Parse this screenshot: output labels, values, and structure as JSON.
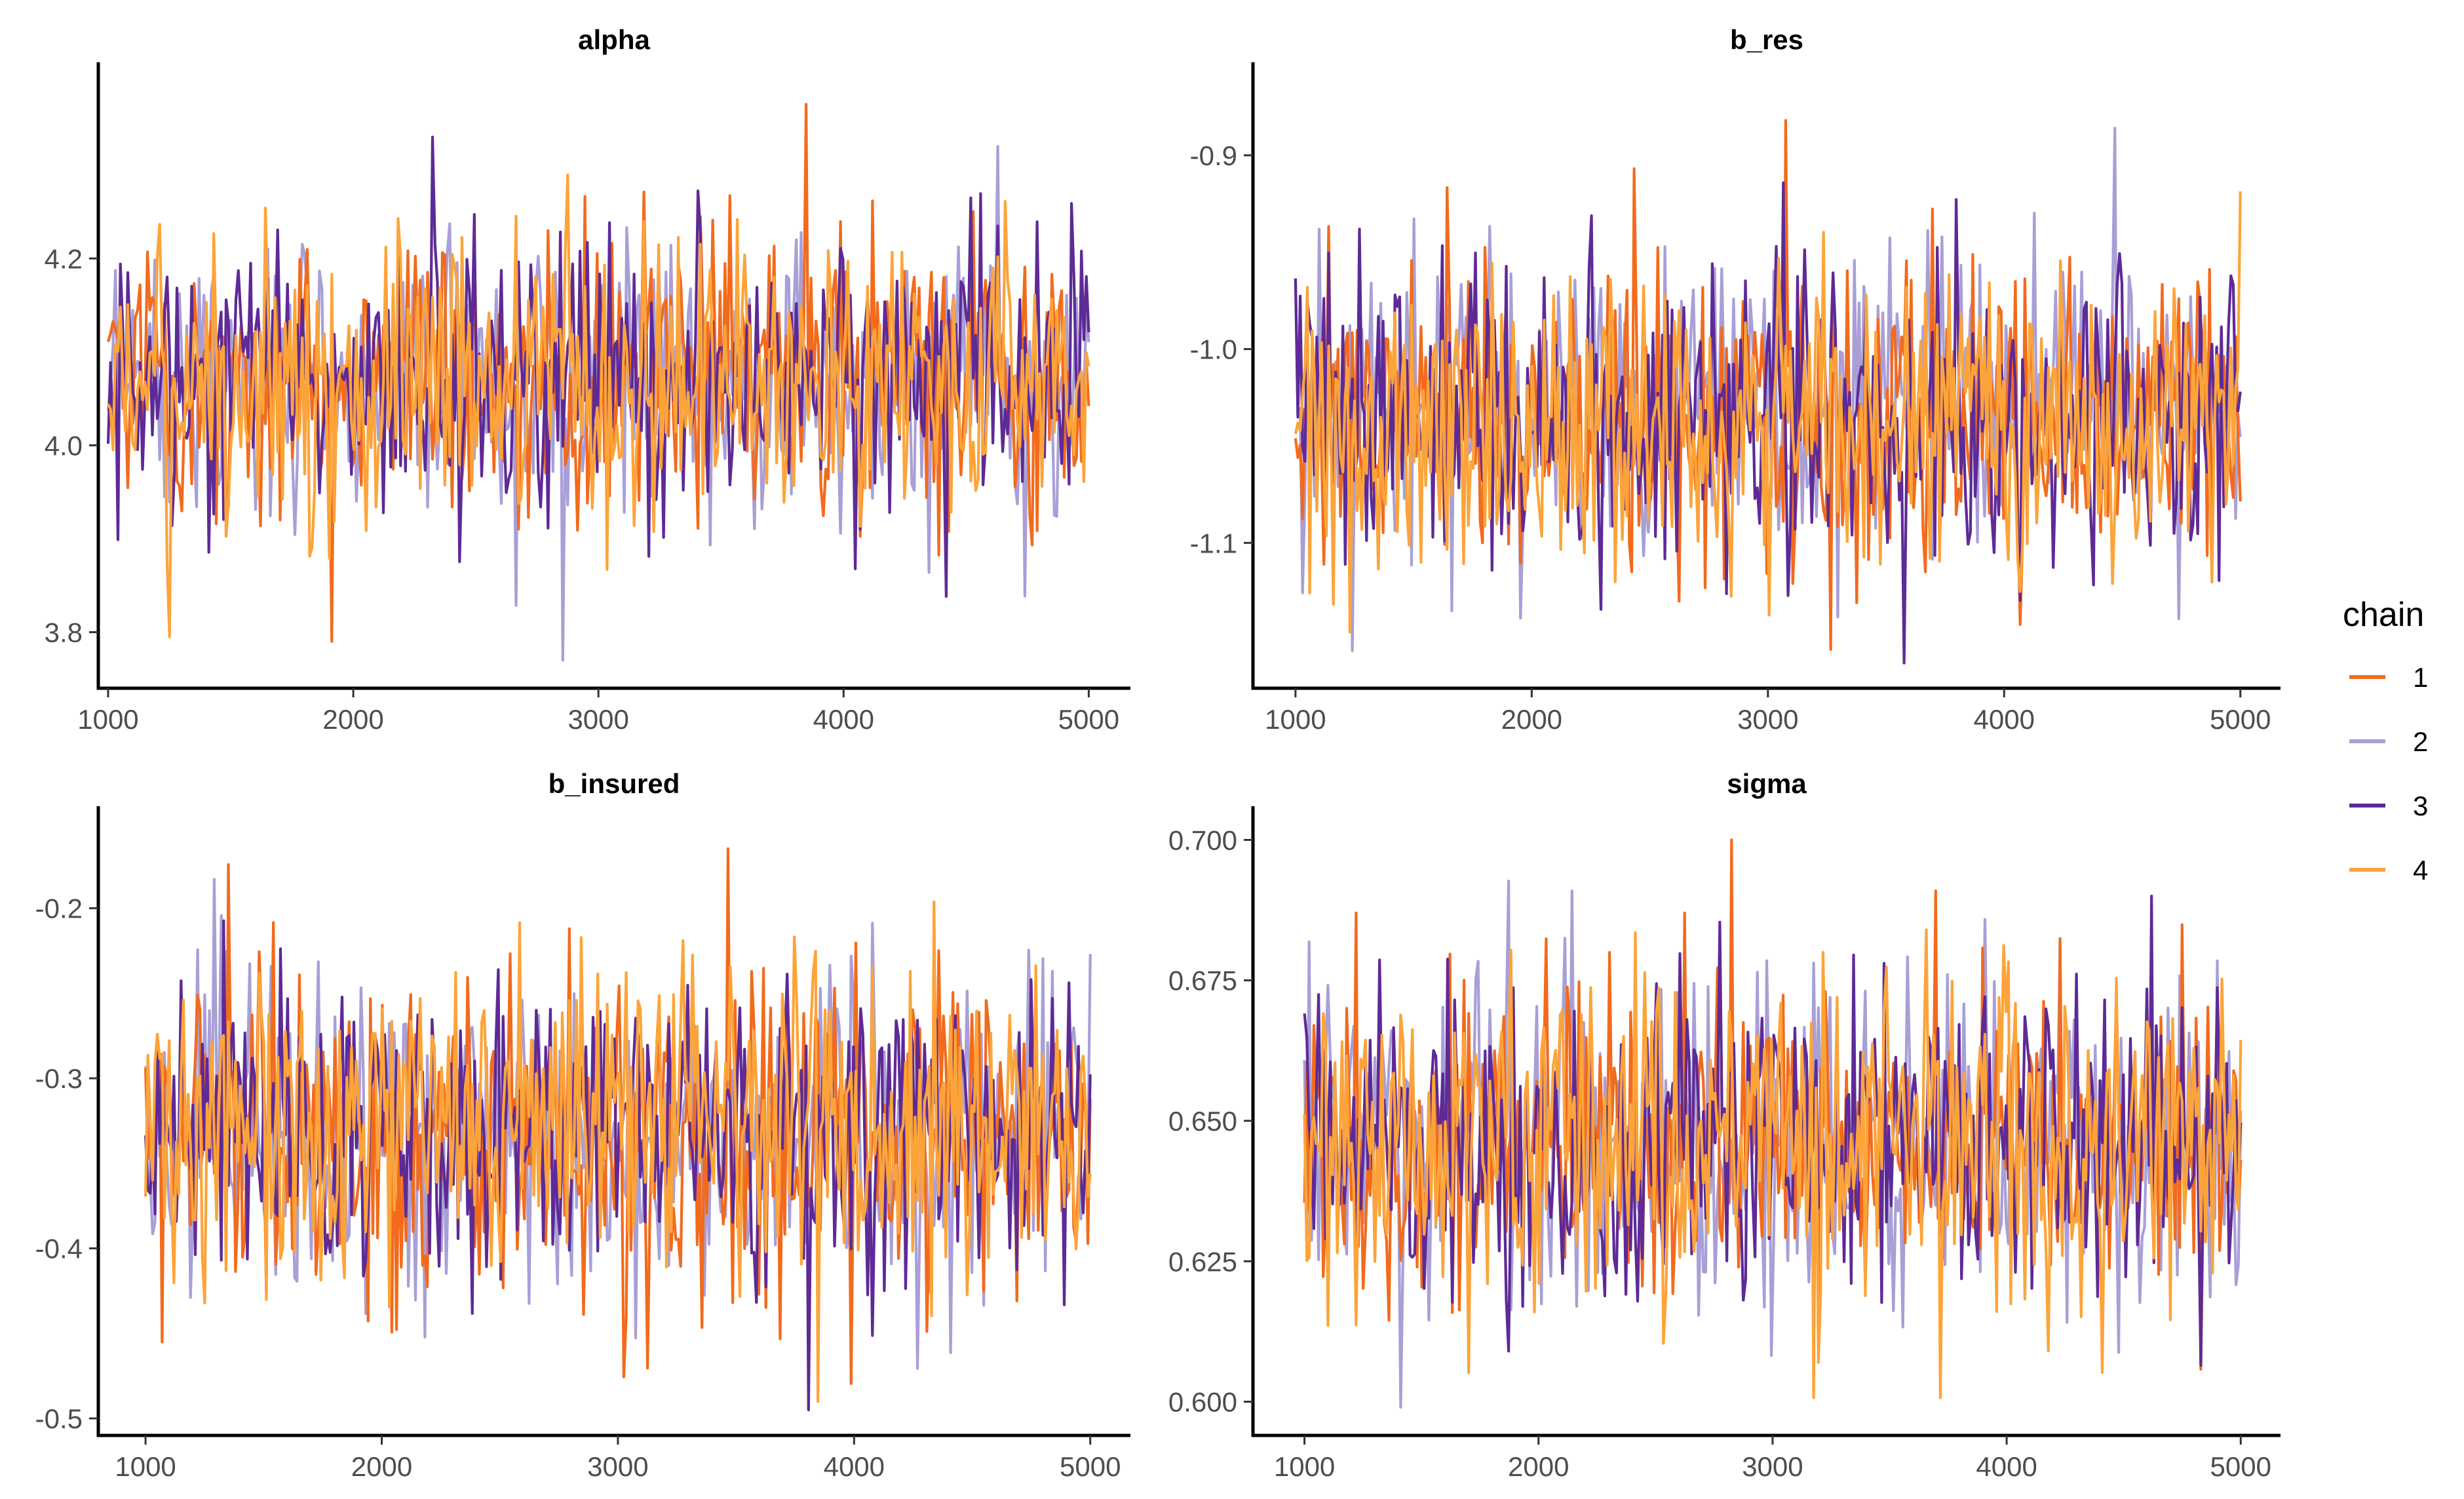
{
  "chart_data": [
    {
      "type": "line",
      "title": "alpha",
      "xlabel": "",
      "ylabel": "",
      "xlim": [
        960,
        5170
      ],
      "ylim": [
        3.74,
        4.41
      ],
      "x_ticks": [
        1000,
        2000,
        3000,
        4000,
        5000
      ],
      "x_tick_labels": [
        "1000",
        "2000",
        "3000",
        "4000",
        "5000"
      ],
      "y_ticks": [
        3.8,
        4.0,
        4.2
      ],
      "y_tick_labels": [
        "3.8",
        "4.0",
        "4.2"
      ],
      "x_range": [
        1000,
        5000
      ],
      "center": 4.07,
      "spread": 0.075,
      "extremes": [
        [
          3850,
          4.365
        ],
        [
          2850,
          3.77
        ],
        [
          2320,
          4.33
        ],
        [
          1250,
          3.795
        ],
        [
          1910,
          3.79
        ],
        [
          4630,
          4.32
        ]
      ],
      "seed": 11
    },
    {
      "type": "line",
      "title": "b_res",
      "xlabel": "",
      "ylabel": "",
      "xlim": [
        820,
        5170
      ],
      "ylim": [
        -1.175,
        -0.852
      ],
      "x_ticks": [
        1000,
        2000,
        3000,
        4000,
        5000
      ],
      "x_tick_labels": [
        "1000",
        "2000",
        "3000",
        "4000",
        "5000"
      ],
      "y_ticks": [
        -0.9,
        -1.0,
        -1.1
      ],
      "y_tick_labels": [
        "-0.9",
        "-1.0",
        "-1.1"
      ],
      "x_range": [
        1000,
        5000
      ],
      "center": -1.035,
      "spread": 0.04,
      "extremes": [
        [
          3080,
          -0.882
        ],
        [
          4470,
          -0.886
        ],
        [
          3580,
          -1.162
        ],
        [
          1230,
          -1.146
        ],
        [
          3270,
          -1.155
        ]
      ],
      "seed": 23
    },
    {
      "type": "line",
      "title": "b_insured",
      "xlabel": "",
      "ylabel": "",
      "xlim": [
        800,
        5170
      ],
      "ylim": [
        -0.51,
        -0.14
      ],
      "x_ticks": [
        1000,
        2000,
        3000,
        4000,
        5000
      ],
      "x_tick_labels": [
        "1000",
        "2000",
        "3000",
        "4000",
        "5000"
      ],
      "y_ticks": [
        -0.2,
        -0.3,
        -0.4,
        -0.5
      ],
      "y_tick_labels": [
        "-0.2",
        "-0.3",
        "-0.4",
        "-0.5"
      ],
      "x_range": [
        1000,
        5000
      ],
      "center": -0.33,
      "spread": 0.045,
      "extremes": [
        [
          3470,
          -0.165
        ],
        [
          1290,
          -0.183
        ],
        [
          3810,
          -0.495
        ],
        [
          3850,
          -0.49
        ],
        [
          1070,
          -0.455
        ]
      ],
      "seed": 37
    },
    {
      "type": "line",
      "title": "sigma",
      "xlabel": "",
      "ylabel": "",
      "xlim": [
        780,
        5170
      ],
      "ylim": [
        0.594,
        0.706
      ],
      "x_ticks": [
        1000,
        2000,
        3000,
        4000,
        5000
      ],
      "x_tick_labels": [
        "1000",
        "2000",
        "3000",
        "4000",
        "5000"
      ],
      "y_ticks": [
        0.6,
        0.625,
        0.65,
        0.675,
        0.7
      ],
      "y_tick_labels": [
        "0.600",
        "0.625",
        "0.650",
        "0.675",
        "0.700"
      ],
      "x_range": [
        1000,
        5000
      ],
      "center": 0.646,
      "spread": 0.014,
      "extremes": [
        [
          2820,
          0.7
        ],
        [
          1410,
          0.599
        ],
        [
          4620,
          0.69
        ],
        [
          3200,
          0.607
        ],
        [
          1220,
          0.687
        ]
      ],
      "seed": 53
    }
  ],
  "legend": {
    "title": "chain",
    "entries": [
      {
        "label": "1",
        "color": "#f26b1d"
      },
      {
        "label": "2",
        "color": "#a99fd6"
      },
      {
        "label": "3",
        "color": "#5e2a96"
      },
      {
        "label": "4",
        "color": "#fca43a"
      }
    ]
  },
  "series_draw_order": [
    1,
    0,
    2,
    3
  ]
}
